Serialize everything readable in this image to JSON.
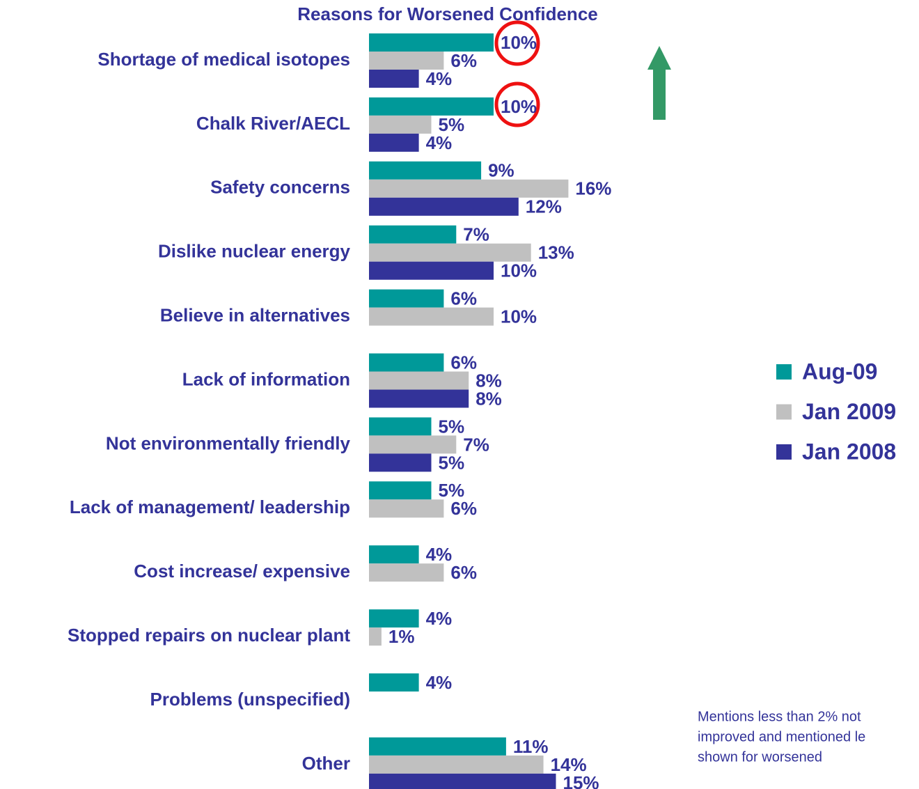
{
  "chart_data": {
    "type": "bar",
    "orientation": "horizontal",
    "title": "Reasons for Worsened Confidence",
    "categories": [
      "Shortage of medical isotopes",
      "Chalk River/AECL",
      "Safety concerns",
      "Dislike nuclear energy",
      "Believe in alternatives",
      "Lack of information",
      "Not environmentally friendly",
      "Lack of management/ leadership",
      "Cost increase/ expensive",
      "Stopped repairs on nuclear plant",
      "Problems (unspecified)",
      "Other"
    ],
    "series": [
      {
        "name": "Aug-09",
        "color": "#009999",
        "values": [
          10,
          10,
          9,
          7,
          6,
          6,
          5,
          5,
          4,
          4,
          4,
          11
        ],
        "value_labels": [
          "10%",
          "10%",
          "9%",
          "7%",
          "6%",
          "6%",
          "5%",
          "5%",
          "4%",
          "4%",
          "4%",
          "11%"
        ]
      },
      {
        "name": "Jan 2009",
        "color": "#c0c0c0",
        "values": [
          6,
          5,
          16,
          13,
          10,
          8,
          7,
          6,
          6,
          1,
          null,
          14
        ],
        "value_labels": [
          "6%",
          "5%",
          "16%",
          "13%",
          "10%",
          "8%",
          "7%",
          "6%",
          "6%",
          "1%",
          null,
          "14%"
        ]
      },
      {
        "name": "Jan 2008",
        "color": "#333399",
        "values": [
          4,
          4,
          12,
          10,
          null,
          8,
          5,
          null,
          null,
          null,
          null,
          15
        ],
        "value_labels": [
          "4%",
          "4%",
          "12%",
          "10%",
          null,
          "8%",
          "5%",
          null,
          null,
          null,
          null,
          "15%"
        ]
      }
    ],
    "legend": "right",
    "note": [
      "Mentions less than 2% not",
      "improved and mentioned le",
      "shown for worsened"
    ]
  }
}
